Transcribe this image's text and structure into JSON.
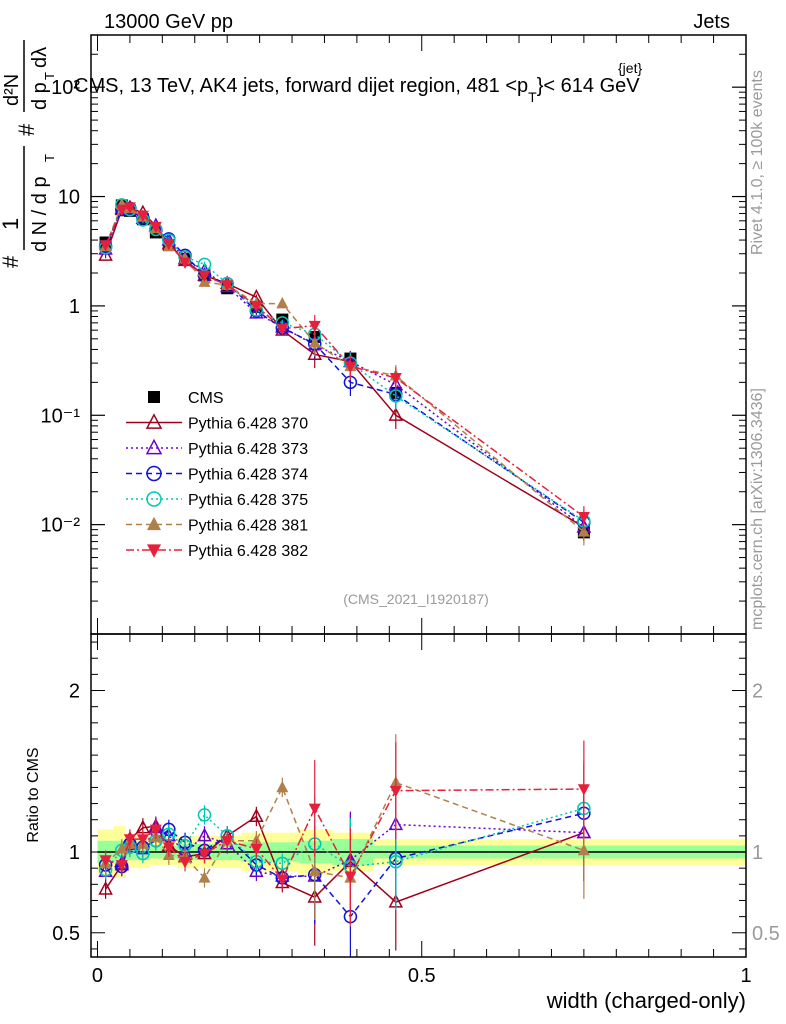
{
  "header": {
    "energy_label": "13000 GeV pp",
    "category_label": "Jets",
    "plot_title": "CMS, 13 TeV, AK4 jets, forward dijet region, 481 <p",
    "plot_title_sup": "{jet}",
    "plot_title_sub": "T",
    "plot_title_tail": "}< 614 GeV",
    "rivet_label": "Rivet 4.1.0, ≥ 100k events",
    "mcplots_label": "mcplots.cern.ch [arXiv:1306.3436]",
    "analysis_id": "(CMS_2021_I1920187)"
  },
  "chart_data": [
    {
      "type": "scatter",
      "scale": "log",
      "title": "CMS, 13 TeV, AK4 jets, forward dijet region, 481 < pT{jet} < 614 GeV",
      "ylabel": "# 1/(dN/dpT) # d²N/(dpT dλ)",
      "ylim": [
        0.001,
        300
      ],
      "y_tick_labels": [
        "10⁻²",
        "10⁻¹",
        "1",
        "10",
        "10²"
      ],
      "xlim": [
        -0.01,
        1.0
      ],
      "x": [
        0.0125,
        0.0375,
        0.05,
        0.07,
        0.09,
        0.11,
        0.135,
        0.165,
        0.2,
        0.245,
        0.285,
        0.335,
        0.39,
        0.46,
        0.75
      ],
      "series": [
        {
          "name": "CMS",
          "marker": "square-filled",
          "color": "#000000",
          "values": [
            3.8,
            8.3,
            7.4,
            6.2,
            4.7,
            3.6,
            2.7,
            1.9,
            1.45,
            0.98,
            0.75,
            0.52,
            0.33,
            0.16,
            0.0085
          ]
        },
        {
          "name": "Pythia 6.428 370",
          "marker": "triangle-up-open",
          "line": "solid",
          "color": "#a0001c",
          "values": [
            2.9,
            7.6,
            7.9,
            7.1,
            5.4,
            3.7,
            2.6,
            1.9,
            1.6,
            1.2,
            0.6,
            0.36,
            0.31,
            0.1,
            0.0095
          ]
        },
        {
          "name": "Pythia 6.428 373",
          "marker": "triangle-up-open",
          "line": "dotted",
          "color": "#6a00d4",
          "values": [
            3.3,
            7.8,
            7.6,
            6.3,
            5.4,
            4.0,
            2.7,
            2.1,
            1.5,
            0.86,
            0.64,
            0.44,
            0.31,
            0.19,
            0.0095
          ]
        },
        {
          "name": "Pythia 6.428 374",
          "marker": "circle-open",
          "line": "dashed",
          "color": "#1010d8",
          "values": [
            3.5,
            7.6,
            7.8,
            6.4,
            5.0,
            4.1,
            2.9,
            1.9,
            1.6,
            0.9,
            0.63,
            0.45,
            0.2,
            0.155,
            0.0105
          ]
        },
        {
          "name": "Pythia 6.428 375",
          "marker": "circle-open",
          "line": "dotted",
          "color": "#00c8b4",
          "values": [
            3.4,
            8.4,
            7.6,
            6.1,
            5.0,
            4.0,
            2.8,
            2.4,
            1.6,
            0.92,
            0.7,
            0.55,
            0.3,
            0.15,
            0.0108
          ]
        },
        {
          "name": "Pythia 6.428 381",
          "marker": "triangle-up-filled",
          "line": "dashed",
          "color": "#b0804a",
          "values": [
            3.5,
            8.5,
            7.8,
            6.5,
            5.1,
            3.5,
            2.7,
            1.65,
            1.55,
            1.05,
            1.05,
            0.46,
            0.28,
            0.23,
            0.0086
          ]
        },
        {
          "name": "Pythia 6.428 382",
          "marker": "triangle-down-filled",
          "line": "dashdot",
          "color": "#e6203c",
          "values": [
            3.6,
            7.6,
            8.0,
            6.7,
            5.3,
            3.7,
            2.5,
            1.9,
            1.55,
            1.0,
            0.62,
            0.66,
            0.28,
            0.22,
            0.0118
          ]
        }
      ]
    },
    {
      "type": "scatter",
      "title": "Ratio to CMS",
      "xlabel": "width (charged-only)",
      "ylabel": "Ratio to CMS",
      "ylim": [
        0.35,
        2.35
      ],
      "xlim": [
        -0.01,
        1.0
      ],
      "x_tick_labels": [
        "0",
        "0.5",
        "1"
      ],
      "y_tick_labels": [
        "0.5",
        "1",
        "2"
      ],
      "x": [
        0.0125,
        0.0375,
        0.05,
        0.07,
        0.09,
        0.11,
        0.135,
        0.165,
        0.2,
        0.245,
        0.285,
        0.335,
        0.39,
        0.46,
        0.75
      ],
      "band_inner": [
        0.93,
        0.93,
        0.95,
        0.95,
        0.96,
        0.96,
        0.95,
        0.95,
        0.95,
        0.94,
        0.94,
        0.93,
        0.92,
        0.96,
        0.96
      ],
      "band_inner_hi": [
        1.07,
        1.07,
        1.05,
        1.05,
        1.04,
        1.04,
        1.05,
        1.05,
        1.05,
        1.06,
        1.06,
        1.07,
        1.08,
        1.04,
        1.04
      ],
      "band_outer": [
        0.86,
        0.84,
        0.9,
        0.9,
        0.92,
        0.92,
        0.9,
        0.9,
        0.9,
        0.88,
        0.88,
        0.86,
        0.88,
        0.92,
        0.92
      ],
      "band_outer_hi": [
        1.14,
        1.16,
        1.1,
        1.1,
        1.08,
        1.08,
        1.1,
        1.1,
        1.1,
        1.12,
        1.12,
        1.14,
        1.12,
        1.08,
        1.08
      ],
      "series": [
        {
          "name": "Pythia 6.428 370",
          "values": [
            0.77,
            0.92,
            1.08,
            1.15,
            1.16,
            1.04,
            0.97,
            0.99,
            1.1,
            1.22,
            0.81,
            0.72,
            0.94,
            0.69,
            1.12
          ]
        },
        {
          "name": "Pythia 6.428 373",
          "values": [
            0.88,
            0.93,
            1.03,
            1.02,
            1.15,
            1.1,
            1.0,
            1.1,
            1.05,
            0.88,
            0.85,
            0.85,
            0.95,
            1.17,
            1.12
          ]
        },
        {
          "name": "Pythia 6.428 374",
          "values": [
            0.92,
            0.91,
            1.05,
            1.03,
            1.07,
            1.14,
            1.06,
            1.01,
            1.1,
            0.92,
            0.84,
            0.86,
            0.6,
            0.96,
            1.24
          ]
        },
        {
          "name": "Pythia 6.428 375",
          "values": [
            0.89,
            1.01,
            1.03,
            0.99,
            1.07,
            1.11,
            1.04,
            1.23,
            1.1,
            0.94,
            0.93,
            1.05,
            0.91,
            0.94,
            1.27
          ]
        },
        {
          "name": "Pythia 6.428 381",
          "values": [
            0.93,
            1.02,
            1.05,
            1.05,
            1.09,
            0.98,
            0.97,
            0.84,
            1.07,
            1.07,
            1.4,
            0.88,
            0.84,
            1.43,
            1.01
          ]
        },
        {
          "name": "Pythia 6.428 382",
          "values": [
            0.95,
            0.92,
            1.08,
            1.08,
            1.14,
            1.03,
            0.94,
            0.99,
            1.07,
            1.02,
            0.83,
            1.27,
            0.85,
            1.38,
            1.39
          ]
        }
      ]
    }
  ]
}
